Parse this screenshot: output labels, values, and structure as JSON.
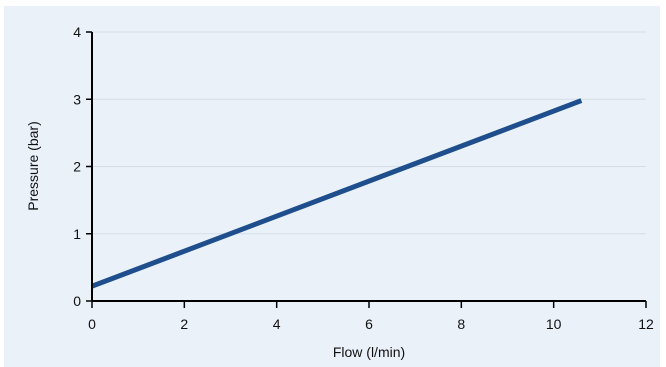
{
  "chart_data": {
    "type": "line",
    "xlabel": "Flow (l/min)",
    "ylabel": "Pressure (bar)",
    "xlim": [
      0,
      12
    ],
    "ylim": [
      0,
      4
    ],
    "xticks": [
      0,
      2,
      4,
      6,
      8,
      10,
      12
    ],
    "yticks": [
      0,
      1,
      2,
      3,
      4
    ],
    "grid": "horizontal",
    "series": [
      {
        "color": "#1f4e8c",
        "x": [
          0,
          10.6
        ],
        "y": [
          0.22,
          2.98
        ]
      }
    ]
  }
}
